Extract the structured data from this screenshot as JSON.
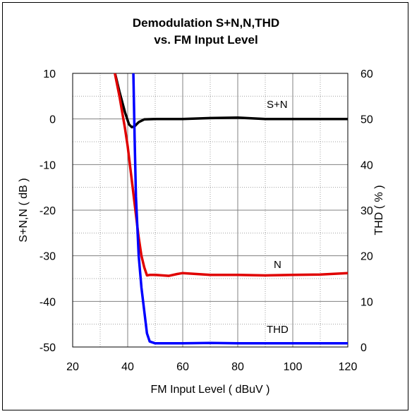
{
  "chart_data": {
    "type": "line",
    "title_line1": "Demodulation S+N,N,THD",
    "title_line2": "vs. FM Input Level",
    "xlabel": "FM Input Level ( dBuV )",
    "ylabel_left": "S+N,N ( dB )",
    "ylabel_right": "THD ( % )",
    "xlim": [
      20,
      120
    ],
    "ylim_left": [
      -50,
      10
    ],
    "ylim_right": [
      0,
      60
    ],
    "x_ticks": [
      "20",
      "40",
      "60",
      "80",
      "100",
      "120"
    ],
    "y_left_ticks": [
      "10",
      "0",
      "-10",
      "-20",
      "-30",
      "-40",
      "-50"
    ],
    "y_right_ticks": [
      "60",
      "50",
      "40",
      "30",
      "20",
      "10",
      "0"
    ],
    "grid": true,
    "series": [
      {
        "name": "S+N",
        "axis": "left",
        "color": "#000000",
        "x": [
          35,
          37,
          39,
          40.5,
          41.5,
          42.5,
          44,
          46,
          50,
          60,
          70,
          80,
          90,
          100,
          110,
          120
        ],
        "y": [
          11,
          6,
          1.5,
          -1.2,
          -1.8,
          -1.6,
          -0.7,
          -0.1,
          0,
          0,
          0.2,
          0.3,
          0,
          0,
          0,
          0
        ]
      },
      {
        "name": "N",
        "axis": "left",
        "color": "#e00000",
        "x": [
          35,
          37,
          39,
          40,
          41,
          42,
          43,
          44,
          45,
          46,
          47,
          48,
          50,
          55,
          58,
          60,
          65,
          70,
          80,
          90,
          100,
          110,
          120
        ],
        "y": [
          11,
          5,
          -2,
          -6,
          -11,
          -16,
          -21,
          -26,
          -30,
          -32.5,
          -34.3,
          -34.2,
          -34.2,
          -34.4,
          -34,
          -33.8,
          -34,
          -34.2,
          -34.2,
          -34.3,
          -34.2,
          -34.1,
          -33.8
        ]
      },
      {
        "name": "THD",
        "axis": "right",
        "color": "#0000ff",
        "x": [
          42,
          42.5,
          43,
          44,
          45,
          46,
          47,
          48,
          50,
          60,
          70,
          80,
          90,
          100,
          110,
          120
        ],
        "y": [
          62,
          46,
          33,
          20,
          13,
          8,
          3,
          1.2,
          0.8,
          0.8,
          0.9,
          0.8,
          0.8,
          0.8,
          0.8,
          0.8
        ]
      }
    ]
  }
}
